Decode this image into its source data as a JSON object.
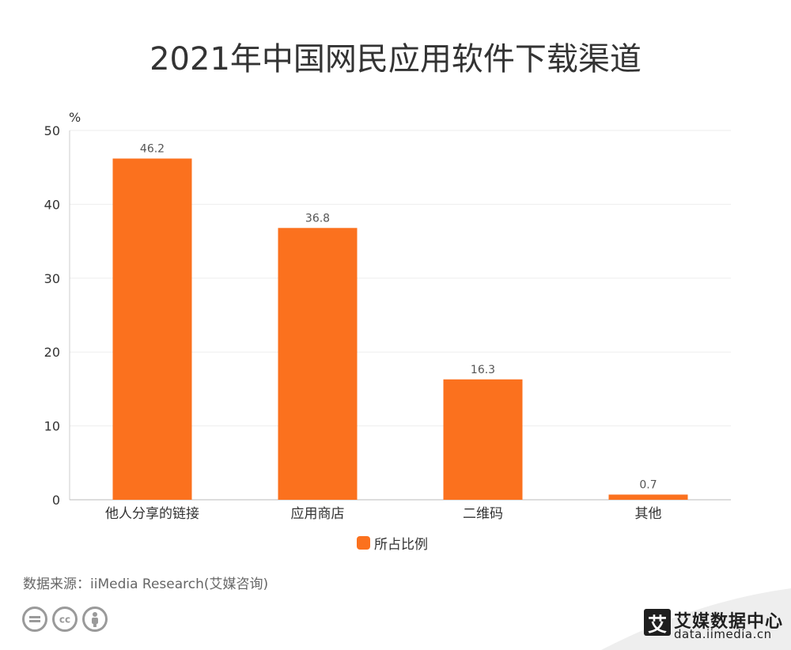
{
  "chart_data": {
    "type": "bar",
    "title": "2021年中国网民应用软件下载渠道",
    "ylabel": "%",
    "xlabel": "",
    "ylim": [
      0,
      50
    ],
    "yticks": [
      0,
      10,
      20,
      30,
      40,
      50
    ],
    "categories": [
      "他人分享的链接",
      "应用商店",
      "二维码",
      "其他"
    ],
    "series": [
      {
        "name": "所占比例",
        "values": [
          46.2,
          36.8,
          16.3,
          0.7
        ]
      }
    ],
    "grid": true,
    "legend_position": "bottom",
    "bar_color": "#fb711e"
  },
  "source": "数据来源：iiMedia Research(艾媒咨询)",
  "license_icons": [
    "equals-icon",
    "cc-icon",
    "person-icon"
  ],
  "brand": {
    "logo_char": "艾",
    "name": "艾媒数据中心",
    "url": "data.iimedia.cn"
  }
}
